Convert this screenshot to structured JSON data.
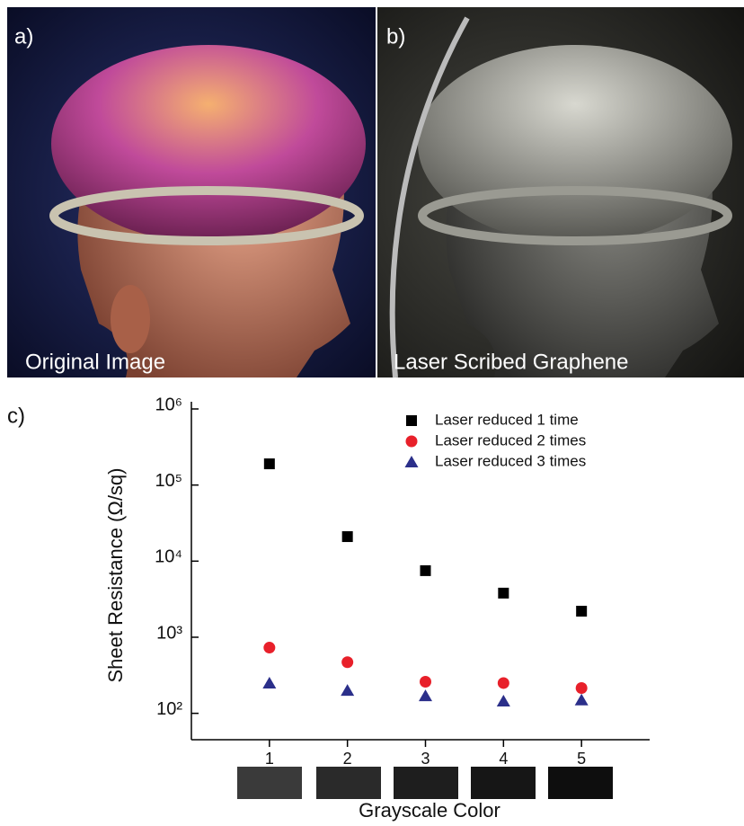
{
  "panels": [
    {
      "label": "a)",
      "caption": "Original Image"
    },
    {
      "label": "b)",
      "caption": "Laser Scribed Graphene"
    }
  ],
  "chart_data": {
    "type": "scatter",
    "panel_label": "c)",
    "x_label": "Grayscale Color",
    "y_label": "Sheet Resistance (Ω/sq)",
    "x": [
      1,
      2,
      3,
      4,
      5
    ],
    "xlim": [
      0,
      6
    ],
    "xticks": [
      1,
      2,
      3,
      4,
      5
    ],
    "ylim": [
      45,
      1000000
    ],
    "log_y": true,
    "yticks": [
      {
        "value": 100,
        "label": "10²"
      },
      {
        "value": 1000,
        "label": "10³"
      },
      {
        "value": 10000,
        "label": "10⁴"
      },
      {
        "value": 100000,
        "label": "10⁵"
      },
      {
        "value": 1000000,
        "label": "10⁶"
      }
    ],
    "legend": "upper right",
    "series": [
      {
        "name": "Laser reduced 1 time",
        "color": "#000000",
        "marker": "square",
        "values": [
          190000,
          21000,
          7500,
          3800,
          2200
        ]
      },
      {
        "name": "Laser reduced 2 times",
        "color": "#e8202a",
        "marker": "circle",
        "values": [
          730,
          470,
          260,
          250,
          215
        ]
      },
      {
        "name": "Laser reduced 3 times",
        "color": "#2b2f8a",
        "marker": "triangle",
        "values": [
          250,
          200,
          170,
          145,
          150
        ]
      }
    ]
  }
}
